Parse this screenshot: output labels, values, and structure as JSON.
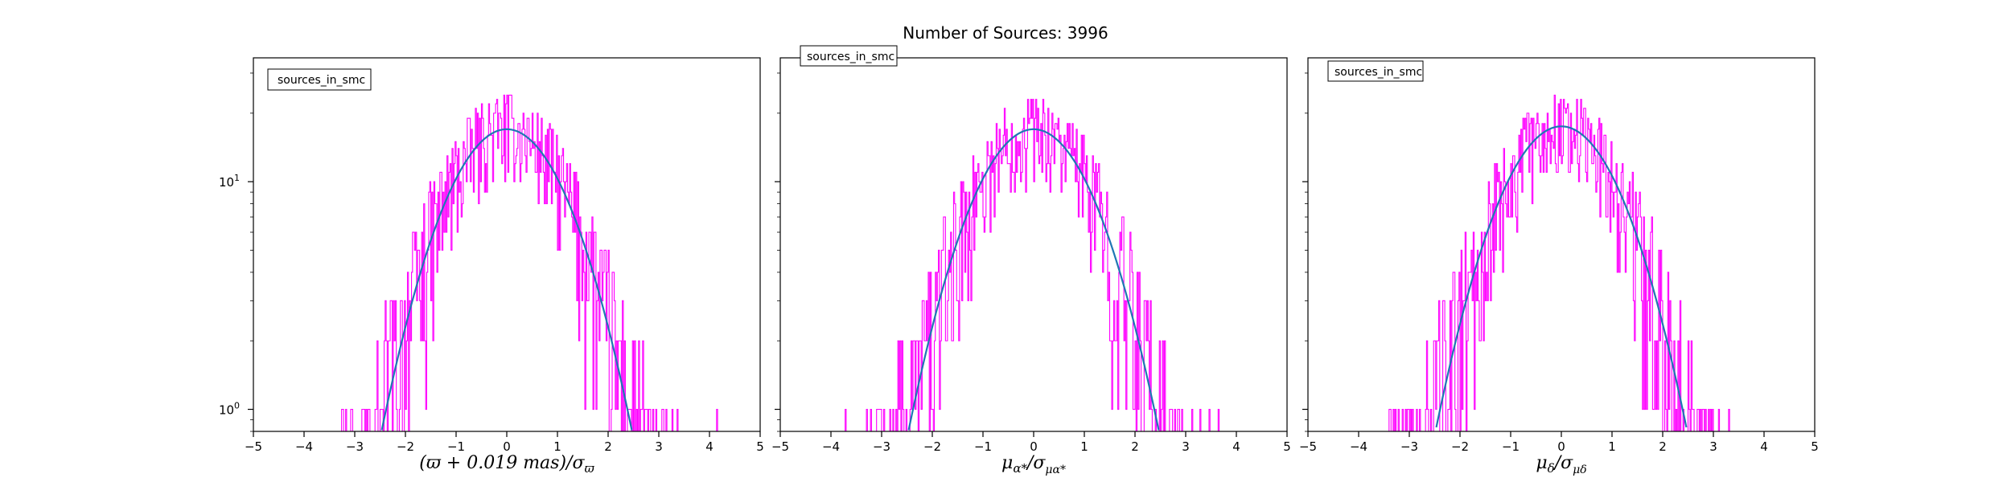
{
  "chart_data": {
    "title": "Number of Sources: 3996",
    "type": "histogram",
    "yscale": "log",
    "ylim": [
      0.8,
      35
    ],
    "yticks": [
      {
        "value": 1,
        "label": "10",
        "exp": "0"
      },
      {
        "value": 10,
        "label": "10",
        "exp": "1"
      }
    ],
    "xlim": [
      -5,
      5
    ],
    "xticks": [
      "−5",
      "−4",
      "−3",
      "−2",
      "−1",
      "0",
      "1",
      "2",
      "3",
      "4",
      "5"
    ],
    "colors": {
      "histogram": "#ff00ff",
      "fit": "#1f77b4"
    },
    "panels": [
      {
        "legend": "sources_in_smc",
        "legend_position": "upper-left",
        "xlabel": "(ϖ + 0.019 mas)/σϖ",
        "fit": {
          "amplitude": 17,
          "mean": 0,
          "sigma": 1.0
        }
      },
      {
        "legend": "sources_in_smc",
        "legend_position": "top-left",
        "xlabel": "μα*/σμα*",
        "fit": {
          "amplitude": 17,
          "mean": 0,
          "sigma": 1.0
        }
      },
      {
        "legend": "sources_in_smc",
        "legend_position": "upper-left",
        "xlabel": "μδ/σμδ",
        "fit": {
          "amplitude": 17.5,
          "mean": 0,
          "sigma": 1.0
        }
      }
    ]
  }
}
